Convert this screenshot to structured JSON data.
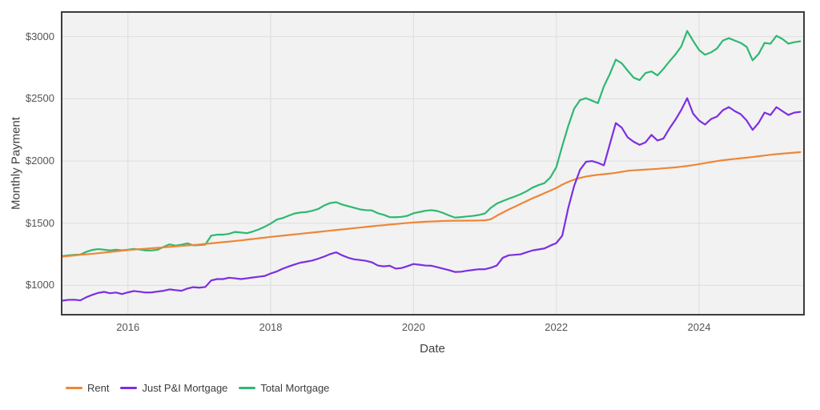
{
  "chart_data": {
    "type": "line",
    "title": "",
    "xlabel": "Date",
    "ylabel": "Monthly Payment",
    "x_start": "2015-02",
    "x_interval": "monthly",
    "x_end": "2025-06",
    "x_start_decimal": 2015.0833,
    "xlim": [
      2015.083,
      2025.458
    ],
    "ylim": [
      771,
      3191
    ],
    "grid": true,
    "panel_background": "#f2f2f2",
    "grid_color": "#e0e0e0",
    "border_color": "#3c3c3c",
    "legend_position": "bottom-left",
    "x_ticks": [
      {
        "v": 2016,
        "label": "2016"
      },
      {
        "v": 2018,
        "label": "2018"
      },
      {
        "v": 2020,
        "label": "2020"
      },
      {
        "v": 2022,
        "label": "2022"
      },
      {
        "v": 2024,
        "label": "2024"
      }
    ],
    "y_ticks": [
      {
        "v": 1000,
        "label": "$1000"
      },
      {
        "v": 1500,
        "label": "$1500"
      },
      {
        "v": 2000,
        "label": "$2000"
      },
      {
        "v": 2500,
        "label": "$2500"
      },
      {
        "v": 3000,
        "label": "$3000"
      }
    ],
    "series": [
      {
        "name": "Rent",
        "color": "#ef8636",
        "values": [
          1232,
          1237,
          1241,
          1246,
          1250,
          1254,
          1259,
          1264,
          1269,
          1274,
          1279,
          1284,
          1288,
          1292,
          1295,
          1299,
          1302,
          1306,
          1310,
          1314,
          1318,
          1321,
          1325,
          1329,
          1334,
          1338,
          1343,
          1348,
          1352,
          1357,
          1362,
          1368,
          1373,
          1379,
          1384,
          1390,
          1395,
          1400,
          1405,
          1410,
          1415,
          1420,
          1425,
          1430,
          1435,
          1440,
          1445,
          1450,
          1455,
          1460,
          1465,
          1470,
          1475,
          1480,
          1484,
          1489,
          1493,
          1498,
          1502,
          1506,
          1509,
          1512,
          1514,
          1516,
          1518,
          1519,
          1520,
          1520,
          1521,
          1521,
          1522,
          1523,
          1532,
          1560,
          1585,
          1610,
          1632,
          1655,
          1678,
          1700,
          1720,
          1741,
          1762,
          1783,
          1810,
          1832,
          1850,
          1864,
          1875,
          1883,
          1889,
          1894,
          1899,
          1905,
          1913,
          1921,
          1925,
          1928,
          1931,
          1934,
          1937,
          1941,
          1945,
          1949,
          1954,
          1960,
          1967,
          1975,
          1983,
          1991,
          1999,
          2006,
          2012,
          2017,
          2022,
          2027,
          2032,
          2038,
          2044,
          2050,
          2055,
          2059,
          2063,
          2067,
          2071
        ]
      },
      {
        "name": "Just P&I Mortgage",
        "color": "#7d2ee2",
        "values": [
          878,
          884,
          885,
          880,
          905,
          924,
          940,
          948,
          937,
          943,
          931,
          944,
          955,
          949,
          943,
          944,
          951,
          957,
          968,
          962,
          957,
          975,
          986,
          982,
          987,
          1040,
          1051,
          1051,
          1062,
          1057,
          1051,
          1057,
          1064,
          1070,
          1076,
          1096,
          1112,
          1134,
          1152,
          1168,
          1183,
          1191,
          1200,
          1215,
          1232,
          1252,
          1266,
          1242,
          1223,
          1210,
          1204,
          1198,
          1186,
          1160,
          1153,
          1158,
          1135,
          1140,
          1155,
          1172,
          1166,
          1160,
          1158,
          1146,
          1134,
          1122,
          1108,
          1110,
          1118,
          1124,
          1130,
          1130,
          1142,
          1160,
          1222,
          1242,
          1246,
          1250,
          1266,
          1281,
          1289,
          1297,
          1320,
          1340,
          1400,
          1620,
          1800,
          1930,
          1994,
          2000,
          1985,
          1965,
          2135,
          2305,
          2268,
          2190,
          2155,
          2130,
          2150,
          2210,
          2165,
          2180,
          2260,
          2330,
          2410,
          2505,
          2380,
          2325,
          2293,
          2337,
          2357,
          2408,
          2433,
          2401,
          2376,
          2325,
          2250,
          2306,
          2389,
          2370,
          2433,
          2401,
          2370,
          2389,
          2395
        ]
      },
      {
        "name": "Total Mortgage",
        "color": "#2eb872",
        "values": [
          1236,
          1242,
          1246,
          1248,
          1270,
          1285,
          1292,
          1287,
          1281,
          1287,
          1282,
          1287,
          1293,
          1288,
          1281,
          1281,
          1287,
          1310,
          1330,
          1320,
          1327,
          1338,
          1322,
          1324,
          1328,
          1400,
          1408,
          1408,
          1415,
          1430,
          1425,
          1420,
          1433,
          1450,
          1472,
          1497,
          1529,
          1541,
          1560,
          1578,
          1586,
          1590,
          1600,
          1615,
          1643,
          1662,
          1669,
          1650,
          1637,
          1624,
          1611,
          1605,
          1603,
          1580,
          1567,
          1549,
          1548,
          1551,
          1560,
          1580,
          1590,
          1600,
          1605,
          1598,
          1582,
          1562,
          1545,
          1549,
          1554,
          1559,
          1566,
          1578,
          1624,
          1658,
          1678,
          1697,
          1714,
          1733,
          1757,
          1786,
          1806,
          1822,
          1868,
          1950,
          2120,
          2280,
          2420,
          2490,
          2505,
          2485,
          2465,
          2600,
          2700,
          2815,
          2785,
          2726,
          2670,
          2650,
          2707,
          2720,
          2688,
          2740,
          2800,
          2855,
          2920,
          3045,
          2965,
          2892,
          2854,
          2873,
          2904,
          2968,
          2987,
          2968,
          2949,
          2917,
          2809,
          2860,
          2949,
          2943,
          3006,
          2981,
          2943,
          2955,
          2962
        ]
      }
    ]
  }
}
